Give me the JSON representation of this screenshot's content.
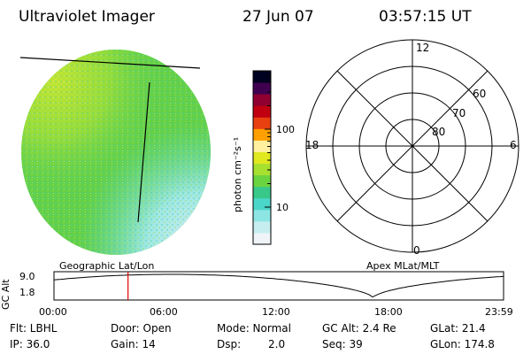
{
  "header": {
    "instrument": "Ultraviolet Imager",
    "date": "27 Jun 07",
    "time": "03:57:15 UT"
  },
  "colorbar": {
    "unit_label": "photon cm⁻²s⁻¹",
    "ticks": [
      "100",
      "10"
    ],
    "colors": [
      "#eef4f8",
      "#c6eef0",
      "#8ee6e4",
      "#4ad6c8",
      "#38c88a",
      "#6ad440",
      "#a8e030",
      "#e0e820",
      "#fff0a0",
      "#ffa000",
      "#e84010",
      "#c00010",
      "#900030",
      "#400050",
      "#000020"
    ]
  },
  "polar": {
    "mlt_labels": {
      "top": "12",
      "left": "18",
      "right": "6",
      "bottom": "0"
    },
    "lat_labels": [
      "80",
      "70",
      "60"
    ]
  },
  "panel_labels": {
    "left": "Geographic Lat/Lon",
    "right": "Apex MLat/MLT"
  },
  "altitude_plot": {
    "ylabel": "GC Alt",
    "yticks": [
      "9.0",
      "1.8"
    ],
    "xticks": [
      "00:00",
      "06:00",
      "12:00",
      "18:00",
      "23:59"
    ],
    "marker_color": "#e00000",
    "chart_data": {
      "type": "line",
      "x": [
        "00:00",
        "06:00",
        "12:00",
        "18:00",
        "23:59"
      ],
      "ylim": [
        1.8,
        9.0
      ],
      "marker_x": "03:57"
    }
  },
  "status": {
    "filter": "Flt: LBHL",
    "ip": "IP: 36.0",
    "door": "Door: Open",
    "gain": "Gain: 14",
    "mode": "Mode: Normal",
    "dsp_label": "Dsp:",
    "dsp_value": "2.0",
    "gc_alt": "GC Alt: 2.4 Re",
    "seq": "Seq: 39",
    "glat": "GLat: 21.4",
    "glon": "GLon: 174.8"
  }
}
